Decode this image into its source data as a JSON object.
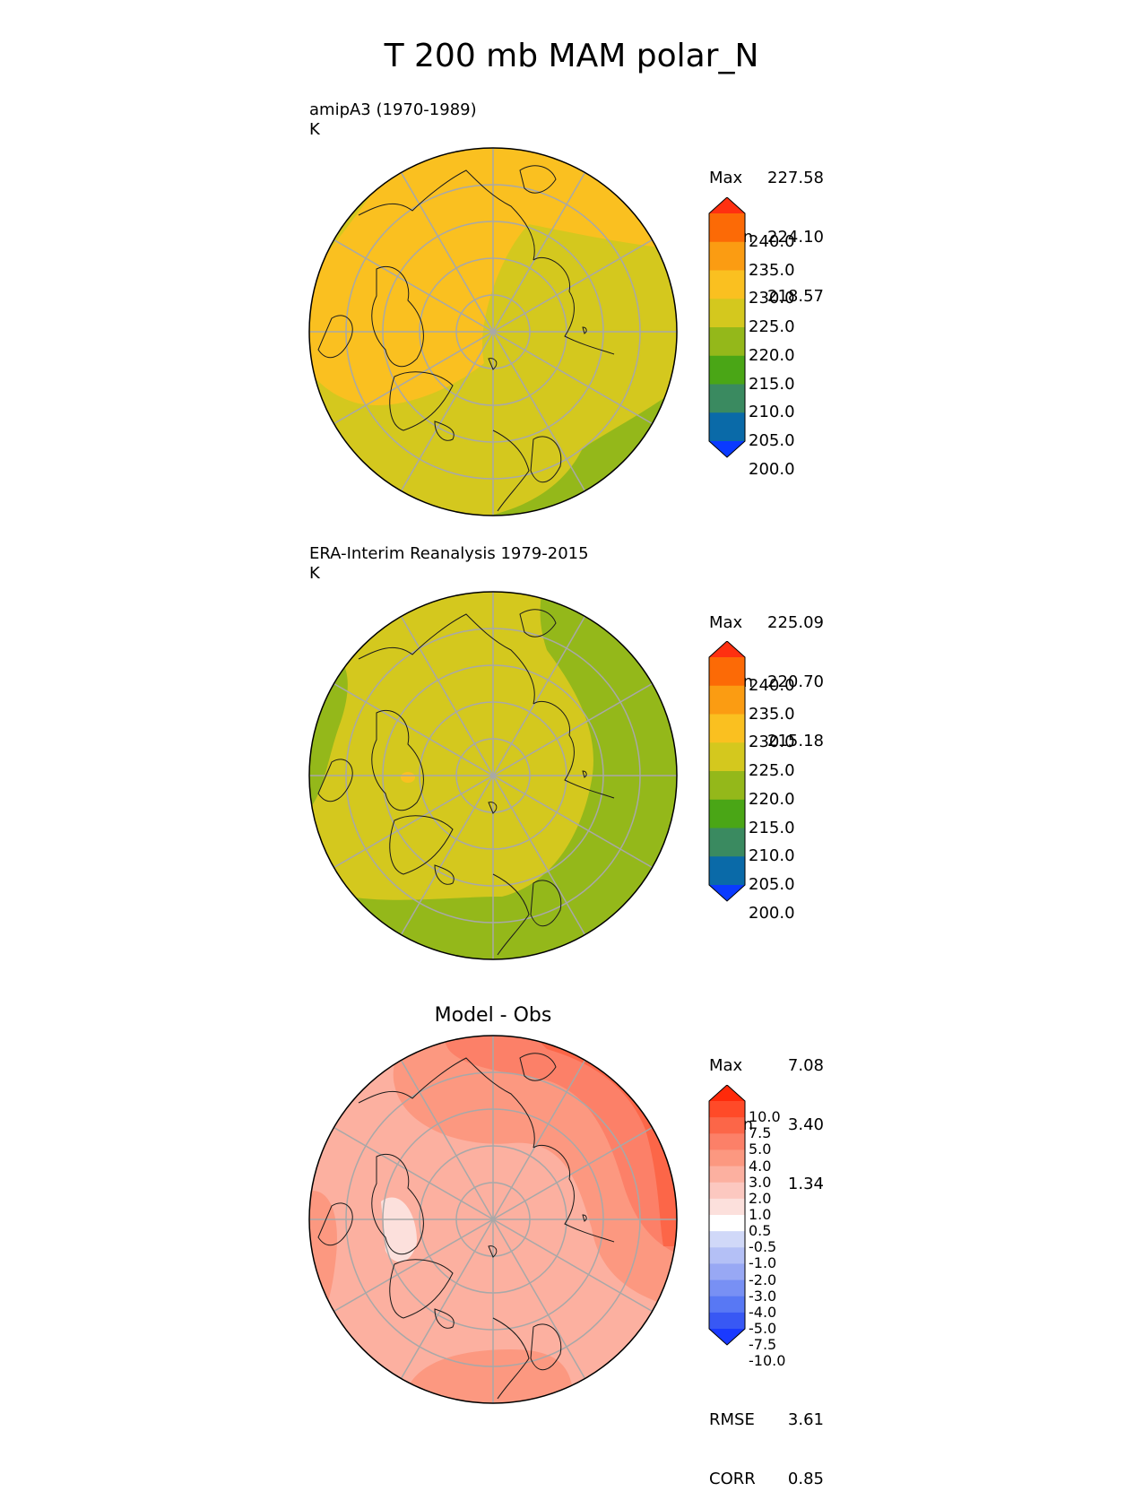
{
  "title": "T 200 mb MAM polar_N",
  "chart_data": [
    {
      "type": "heatmap",
      "projection": "north polar stereographic",
      "title": "amipA3 (1970-1989)",
      "units": "K",
      "stats": {
        "max": "227.58",
        "mean": "224.10",
        "min": "218.57"
      },
      "colorbar": {
        "levels": [
          195,
          200,
          205,
          210,
          215,
          220,
          225,
          230,
          235,
          240,
          245
        ],
        "labels": [
          "240.0",
          "235.0",
          "230.0",
          "225.0",
          "220.0",
          "215.0",
          "210.0",
          "205.0",
          "200.0"
        ],
        "colors": [
          "#0a3aff",
          "#0a6aa8",
          "#3a8a60",
          "#4aa616",
          "#94b81a",
          "#d4c81e",
          "#fac020",
          "#fb9c12",
          "#fc6a06",
          "#ff3010"
        ],
        "extend": "both"
      }
    },
    {
      "type": "heatmap",
      "projection": "north polar stereographic",
      "title": "ERA-Interim Reanalysis 1979-2015",
      "units": "K",
      "stats": {
        "max": "225.09",
        "mean": "220.70",
        "min": "215.18"
      },
      "colorbar": {
        "levels": [
          195,
          200,
          205,
          210,
          215,
          220,
          225,
          230,
          235,
          240,
          245
        ],
        "labels": [
          "240.0",
          "235.0",
          "230.0",
          "225.0",
          "220.0",
          "215.0",
          "210.0",
          "205.0",
          "200.0"
        ],
        "colors": [
          "#0a3aff",
          "#0a6aa8",
          "#3a8a60",
          "#4aa616",
          "#94b81a",
          "#d4c81e",
          "#fac020",
          "#fb9c12",
          "#fc6a06",
          "#ff3010"
        ],
        "extend": "both"
      }
    },
    {
      "type": "heatmap",
      "projection": "north polar stereographic",
      "title": "Model - Obs",
      "stats": {
        "max": "7.08",
        "mean": "3.40",
        "min": "1.34"
      },
      "metrics": {
        "rmse_label": "RMSE",
        "rmse": "3.61",
        "corr_label": "CORR",
        "corr": "0.85"
      },
      "colorbar": {
        "levels": [
          -10,
          -7.5,
          -5,
          -4,
          -3,
          -2,
          -1,
          -0.5,
          0.5,
          1,
          2,
          3,
          4,
          5,
          7.5,
          10
        ],
        "labels": [
          "10.0",
          "7.5",
          "5.0",
          "4.0",
          "3.0",
          "2.0",
          "1.0",
          "0.5",
          "-0.5",
          "-1.0",
          "-2.0",
          "-3.0",
          "-4.0",
          "-5.0",
          "-7.5",
          "-10.0"
        ],
        "colors": [
          "#1a3aff",
          "#3858f4",
          "#5878f4",
          "#7890f4",
          "#98a8f4",
          "#b4c0f6",
          "#d0d8f8",
          "#ffffff",
          "#fce0dc",
          "#fcc8c0",
          "#fcb0a0",
          "#fc9880",
          "#fc8068",
          "#fc6648",
          "#ff4a28",
          "#ff2a0a"
        ],
        "extend": "both"
      }
    }
  ]
}
